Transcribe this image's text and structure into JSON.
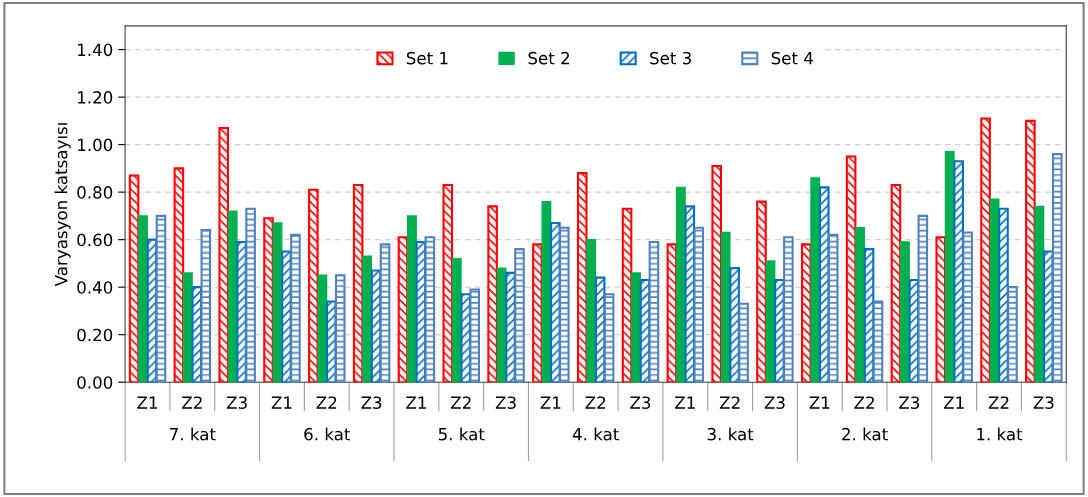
{
  "chart_data": {
    "type": "bar",
    "ylabel": "Varyasyon katsayısı",
    "categories": [
      "Z1",
      "Z2",
      "Z3",
      "Z1",
      "Z2",
      "Z3",
      "Z1",
      "Z2",
      "Z3",
      "Z1",
      "Z2",
      "Z3",
      "Z1",
      "Z2",
      "Z3",
      "Z1",
      "Z2",
      "Z3",
      "Z1",
      "Z2",
      "Z3"
    ],
    "series": [
      {
        "name": "Set 1",
        "color": "#ff0000",
        "values": [
          0.87,
          0.9,
          1.07,
          0.69,
          0.81,
          0.83,
          0.61,
          0.83,
          0.74,
          0.58,
          0.88,
          0.73,
          0.58,
          0.91,
          0.76,
          0.58,
          0.95,
          0.83,
          0.61,
          1.11,
          1.1
        ]
      },
      {
        "name": "Set 2",
        "color": "#00b050",
        "values": [
          0.7,
          0.46,
          0.72,
          0.67,
          0.45,
          0.53,
          0.7,
          0.52,
          0.48,
          0.76,
          0.6,
          0.46,
          0.82,
          0.63,
          0.51,
          0.86,
          0.65,
          0.59,
          0.97,
          0.77,
          0.74
        ]
      },
      {
        "name": "Set 3",
        "color": "#0070c0",
        "values": [
          0.6,
          0.4,
          0.59,
          0.55,
          0.34,
          0.47,
          0.59,
          0.37,
          0.46,
          0.67,
          0.44,
          0.43,
          0.74,
          0.48,
          0.43,
          0.82,
          0.56,
          0.43,
          0.93,
          0.73,
          0.55
        ]
      },
      {
        "name": "Set 4",
        "color": "#4f81bd",
        "values": [
          0.7,
          0.64,
          0.73,
          0.62,
          0.45,
          0.58,
          0.61,
          0.39,
          0.56,
          0.65,
          0.37,
          0.59,
          0.65,
          0.33,
          0.61,
          0.62,
          0.34,
          0.7,
          0.63,
          0.4,
          0.96
        ]
      }
    ],
    "annotations": [
      "7. kat",
      "6. kat",
      "5. kat",
      "4. kat",
      "3. kat",
      "2. kat",
      "1. kat"
    ],
    "ylim": [
      0,
      1.5
    ],
    "yticks": [
      {
        "value": 0,
        "label": "0.00"
      },
      {
        "value": 0.2,
        "label": "0.20"
      },
      {
        "value": 0.4,
        "label": "0.40"
      },
      {
        "value": 0.6,
        "label": "0.60"
      },
      {
        "value": 0.8,
        "label": "0.80"
      },
      {
        "value": 1.0,
        "label": "1.00"
      },
      {
        "value": 1.2,
        "label": "1.20"
      },
      {
        "value": 1.4,
        "label": "1.40"
      }
    ],
    "grid": "y",
    "legend": "top"
  }
}
